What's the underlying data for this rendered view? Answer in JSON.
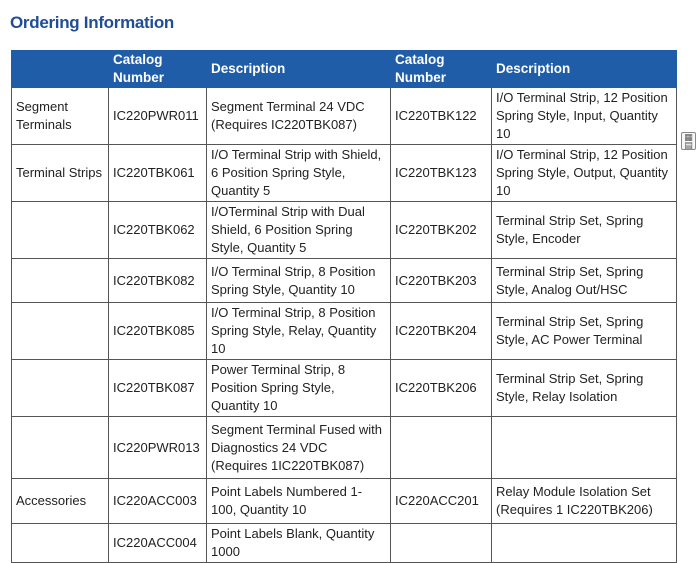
{
  "title": "Ordering Information",
  "headers": {
    "group": "",
    "catalog_number": "Catalog Number",
    "description": "Description",
    "catalog_number_2": "Catalog Number",
    "description_2": "Description"
  },
  "rows": [
    {
      "group": "Segment Terminals",
      "cat1": "IC220PWR011",
      "desc1": "Segment Terminal 24 VDC (Requires IC220TBK087)",
      "cat2": "IC220TBK122",
      "desc2": "I/O Terminal Strip, 12 Position Spring Style, Input, Quantity 10"
    },
    {
      "group": "Terminal Strips",
      "cat1": "IC220TBK061",
      "desc1": "I/O Terminal Strip with Shield, 6 Position Spring Style, Quantity 5",
      "cat2": "IC220TBK123",
      "desc2": "I/O Terminal Strip, 12 Position Spring Style, Output, Quantity 10"
    },
    {
      "group": "",
      "cat1": "IC220TBK062",
      "desc1": "I/OTerminal Strip with Dual Shield, 6 Position Spring Style, Quantity 5",
      "cat2": "IC220TBK202",
      "desc2": "Terminal Strip Set, Spring Style, Encoder"
    },
    {
      "group": "",
      "cat1": "IC220TBK082",
      "desc1": "I/O Terminal Strip, 8 Position Spring Style, Quantity 10",
      "cat2": "IC220TBK203",
      "desc2": "Terminal Strip Set, Spring Style, Analog Out/HSC"
    },
    {
      "group": "",
      "cat1": "IC220TBK085",
      "desc1": "I/O Terminal Strip, 8 Position Spring Style, Relay, Quantity 10",
      "cat2": "IC220TBK204",
      "desc2": "Terminal Strip Set, Spring Style, AC Power Terminal"
    },
    {
      "group": "",
      "cat1": "IC220TBK087",
      "desc1": "Power Terminal Strip, 8 Position Spring Style, Quantity 10",
      "cat2": "IC220TBK206",
      "desc2": "Terminal Strip Set, Spring Style, Relay Isolation"
    },
    {
      "group": "",
      "cat1": "IC220PWR013",
      "desc1": "Segment Terminal Fused with Diagnostics 24 VDC (Requires 1IC220TBK087)",
      "cat2": "",
      "desc2": ""
    },
    {
      "group": "Accessories",
      "cat1": "IC220ACC003",
      "desc1": "Point Labels Numbered 1-100, Quantity 10",
      "cat2": "IC220ACC201",
      "desc2": "Relay Module Isolation Set (Requires 1 IC220TBK206)"
    },
    {
      "group": "",
      "cat1": "IC220ACC004",
      "desc1": "Point Labels Blank, Quantity 1000",
      "cat2": "",
      "desc2": ""
    }
  ],
  "side_icon": "grid-icon"
}
